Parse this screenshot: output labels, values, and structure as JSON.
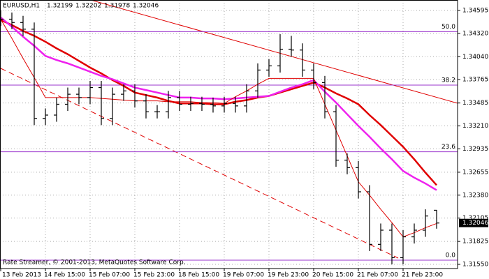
{
  "chart_data": {
    "type": "ohlc",
    "title": "EURUSD,H1",
    "annotation": "Rate Streamer, © 2001-2013, MetaQuotes Software Corp.",
    "bar_color": "#000000",
    "grid": true,
    "ylim": [
      1.315,
      1.3472
    ],
    "yticks": [
      1.34595,
      {
        "value": 1.3432,
        "label": "1.34320"
      },
      {
        "value": 1.3404,
        "label": "1.34040"
      },
      1.33765,
      1.33485,
      {
        "value": 1.3321,
        "label": "1.33210"
      },
      1.32935,
      1.32655,
      {
        "value": 1.3238,
        "label": "1.32380"
      },
      1.32105,
      1.31825,
      {
        "value": 1.3155,
        "label": "1.31550"
      }
    ],
    "xticks": [
      {
        "value": 0,
        "label": "13 Feb 2013"
      },
      {
        "value": 4,
        "label": "14 Feb 15:00"
      },
      {
        "value": 8,
        "label": "15 Feb 07:00"
      },
      {
        "value": 12,
        "label": "15 Feb 23:00"
      },
      {
        "value": 16,
        "label": "18 Feb 15:00"
      },
      {
        "value": 20,
        "label": "19 Feb 07:00"
      },
      {
        "value": 24,
        "label": "19 Feb 23:00"
      },
      {
        "value": 28,
        "label": "20 Feb 15:00"
      },
      {
        "value": 32,
        "label": "21 Feb 07:00"
      },
      {
        "value": 36,
        "label": "21 Feb 23:00"
      }
    ],
    "xlim": [
      -0.0625,
      40.875
    ],
    "open": [
      1.3452,
      1.3449,
      1.3445,
      1.3437,
      1.333,
      1.3334,
      1.3347,
      1.3359,
      1.3355,
      1.3367,
      1.333,
      1.3359,
      1.3363,
      1.3351,
      1.3338,
      1.3338,
      1.3355,
      1.3347,
      1.3348,
      1.3347,
      1.3345,
      1.3348,
      1.3345,
      1.3363,
      1.3388,
      1.3393,
      1.3413,
      1.3412,
      1.3388,
      1.3373,
      1.3338,
      1.328,
      1.3271,
      1.3242,
      1.3179,
      1.3196,
      1.3163,
      1.3188,
      1.3196,
      1.32199
    ],
    "high": [
      1.346,
      1.3457,
      1.3453,
      1.3445,
      1.3342,
      1.3355,
      1.3367,
      1.3367,
      1.3375,
      1.3375,
      1.3367,
      1.3371,
      1.3371,
      1.3359,
      1.3346,
      1.3363,
      1.3363,
      1.3356,
      1.3356,
      1.3355,
      1.3356,
      1.3356,
      1.3371,
      1.3396,
      1.3401,
      1.3431,
      1.3429,
      1.342,
      1.3396,
      1.3381,
      1.3346,
      1.3288,
      1.3279,
      1.325,
      1.3204,
      1.3204,
      1.3196,
      1.3204,
      1.3221,
      1.32202
    ],
    "low": [
      1.3441,
      1.3437,
      1.3429,
      1.3322,
      1.3322,
      1.3326,
      1.3339,
      1.3347,
      1.3347,
      1.3322,
      1.3322,
      1.3351,
      1.3343,
      1.333,
      1.333,
      1.333,
      1.3339,
      1.3339,
      1.3339,
      1.3337,
      1.3337,
      1.3337,
      1.3337,
      1.3355,
      1.338,
      1.3385,
      1.3404,
      1.338,
      1.3365,
      1.333,
      1.3272,
      1.3263,
      1.3234,
      1.3171,
      1.3171,
      1.3155,
      1.3155,
      1.318,
      1.3188,
      1.31978
    ],
    "close": [
      1.3449,
      1.3445,
      1.3437,
      1.333,
      1.3334,
      1.3347,
      1.3359,
      1.3355,
      1.3367,
      1.333,
      1.3359,
      1.3363,
      1.3351,
      1.3338,
      1.3338,
      1.3355,
      1.3347,
      1.3348,
      1.3347,
      1.3345,
      1.3348,
      1.3345,
      1.3363,
      1.3388,
      1.3393,
      1.3413,
      1.3412,
      1.3388,
      1.3373,
      1.3338,
      1.328,
      1.3271,
      1.3242,
      1.3179,
      1.3196,
      1.3163,
      1.3188,
      1.3196,
      1.3213,
      1.32046
    ],
    "series": [
      {
        "color": "#e00000",
        "width": 2.5,
        "values": [
          1.3448,
          1.3442,
          1.3435,
          1.3429,
          1.3422,
          1.3414,
          1.3407,
          1.3399,
          1.3391,
          1.3384,
          1.3376,
          1.3369,
          1.3361,
          1.3358,
          1.3355,
          1.3351,
          1.3348,
          1.3348,
          1.3348,
          1.3347,
          1.3347,
          1.335,
          1.3352,
          1.3355,
          1.3357,
          1.3361,
          1.3365,
          1.3369,
          1.3373,
          1.3367,
          1.336,
          1.3354,
          1.3347,
          1.3334,
          1.3322,
          1.3309,
          1.3296,
          1.3281,
          1.3265,
          1.325
        ]
      },
      {
        "color": "#ee22ee",
        "width": 2.5,
        "values": [
          1.3451,
          1.344,
          1.3428,
          1.3417,
          1.3405,
          1.34,
          1.3396,
          1.3391,
          1.3386,
          1.3381,
          1.3377,
          1.3372,
          1.3367,
          1.3364,
          1.3361,
          1.3358,
          1.3355,
          1.3355,
          1.3354,
          1.3354,
          1.3353,
          1.3354,
          1.3355,
          1.3356,
          1.3357,
          1.3362,
          1.3367,
          1.3371,
          1.3376,
          1.3362,
          1.3349,
          1.3335,
          1.3321,
          1.3308,
          1.3294,
          1.3281,
          1.3267,
          1.3259,
          1.3252,
          1.3244
        ]
      },
      {
        "color": "#e00000",
        "width": 1,
        "values": [
          1.3449,
          1.3426,
          1.3402,
          1.3379,
          1.3355,
          1.3355,
          1.3355,
          1.3355,
          1.3355,
          1.3354,
          1.3353,
          1.3352,
          1.3351,
          1.3351,
          1.3351,
          1.335,
          1.335,
          1.335,
          1.3349,
          1.3349,
          1.3348,
          1.3356,
          1.3363,
          1.3371,
          1.3378,
          1.3378,
          1.3378,
          1.3378,
          1.3378,
          1.3347,
          1.3316,
          1.3285,
          1.3254,
          1.3238,
          1.3221,
          1.3205,
          1.3188,
          1.3193,
          1.3199,
          1.3204
        ]
      }
    ],
    "fib_color": "#9933cc",
    "fib_levels": [
      {
        "label": "50.0",
        "value": 1.3434
      },
      {
        "label": "38.2",
        "value": 1.337
      },
      {
        "label": "23.6",
        "value": 1.329
      },
      {
        "label": "0.0",
        "value": 1.316
      }
    ]
  }
}
